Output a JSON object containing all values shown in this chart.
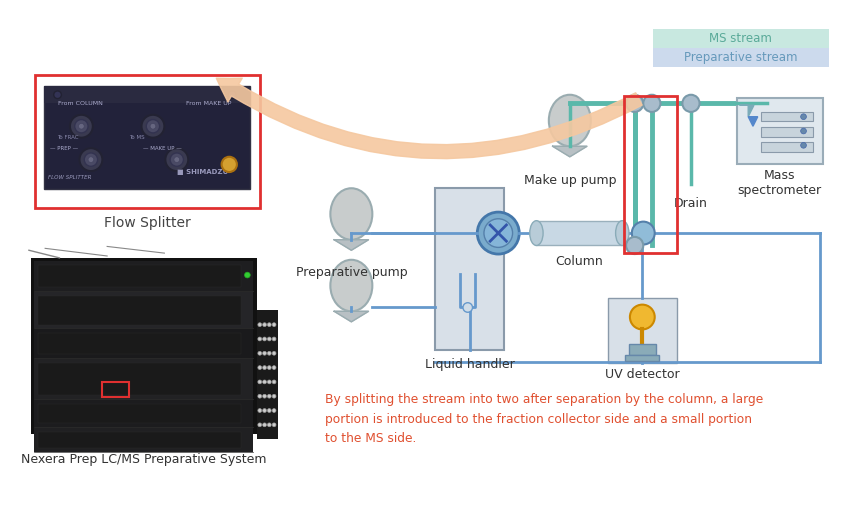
{
  "bg_color": "#ffffff",
  "legend_ms_stream": "MS stream",
  "legend_prep_stream": "Preparative stream",
  "legend_ms_bg": "#c8e8e0",
  "legend_prep_bg": "#ccdaed",
  "legend_ms_text": "#5aaa99",
  "legend_prep_text": "#6699bb",
  "flow_splitter_label": "Flow Splitter",
  "nexera_label": "Nexera Prep LC/MS Preparative System",
  "red_box_color": "#e03030",
  "arrow_color": "#f5c8a0",
  "ms_stream_color": "#5ab8aa",
  "prep_stream_color": "#6699cc",
  "caption_text": "By splitting the stream into two after separation by the column, a large\nportion is introduced to the fraction collector side and a small portion\nto the MS side.",
  "caption_color": "#e05030",
  "labels": {
    "make_up_pump": "Make up pump",
    "preparative_pump": "Preparative pump",
    "liquid_handler": "Liquid handler",
    "column": "Column",
    "drain": "Drain",
    "mass_spec": "Mass\nspectrometer",
    "uv_detector": "UV detector"
  }
}
